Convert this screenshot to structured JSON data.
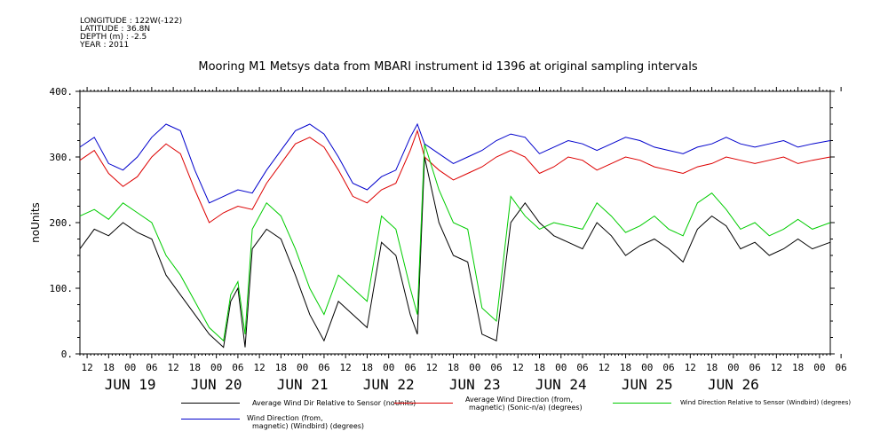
{
  "meta": {
    "longitude": "LONGITUDE : 122W(-122)",
    "latitude": "LATITUDE : 36.8N",
    "depth": "DEPTH (m) : -2.5",
    "year": "YEAR : 2011"
  },
  "chart_data": {
    "type": "line",
    "title": "Mooring M1 Metsys data from MBARI instrument id 1396 at original sampling intervals",
    "ylabel": "noUnits",
    "ylim": [
      0,
      400
    ],
    "yticks": [
      0,
      100,
      200,
      300,
      400
    ],
    "ytick_labels": [
      "0.",
      "100.",
      "200.",
      "300.",
      "400."
    ],
    "xlim_hours": [
      -14,
      195
    ],
    "x_unit_note": "hours from 2011-06-19 00:00",
    "hour_ticks": [
      "12",
      "18",
      "00",
      "06",
      "12",
      "18",
      "00",
      "06",
      "12",
      "18",
      "00",
      "06",
      "12",
      "18",
      "00",
      "06",
      "12",
      "18",
      "00",
      "06",
      "12",
      "18",
      "00",
      "06",
      "12",
      "18",
      "00",
      "06",
      "12",
      "18",
      "00",
      "06",
      "12",
      "18",
      "00",
      "06"
    ],
    "day_labels": [
      "JUN 19",
      "JUN 20",
      "JUN 21",
      "JUN 22",
      "JUN 23",
      "JUN 24",
      "JUN 25",
      "JUN 26"
    ],
    "series": [
      {
        "name": "Average Wind Dir Relative to Sensor (noUnits)",
        "color": "#000000",
        "points": [
          [
            -14,
            160
          ],
          [
            -10,
            190
          ],
          [
            -6,
            180
          ],
          [
            -2,
            200
          ],
          [
            2,
            185
          ],
          [
            6,
            175
          ],
          [
            10,
            120
          ],
          [
            14,
            90
          ],
          [
            18,
            60
          ],
          [
            22,
            30
          ],
          [
            26,
            10
          ],
          [
            28,
            80
          ],
          [
            30,
            100
          ],
          [
            32,
            10
          ],
          [
            34,
            160
          ],
          [
            38,
            190
          ],
          [
            42,
            175
          ],
          [
            46,
            120
          ],
          [
            50,
            60
          ],
          [
            54,
            20
          ],
          [
            58,
            80
          ],
          [
            62,
            60
          ],
          [
            66,
            40
          ],
          [
            70,
            170
          ],
          [
            74,
            150
          ],
          [
            78,
            60
          ],
          [
            80,
            30
          ],
          [
            82,
            300
          ],
          [
            86,
            200
          ],
          [
            90,
            150
          ],
          [
            94,
            140
          ],
          [
            98,
            30
          ],
          [
            102,
            20
          ],
          [
            106,
            200
          ],
          [
            110,
            230
          ],
          [
            114,
            200
          ],
          [
            118,
            180
          ],
          [
            122,
            170
          ],
          [
            126,
            160
          ],
          [
            130,
            200
          ],
          [
            134,
            180
          ],
          [
            138,
            150
          ],
          [
            142,
            165
          ],
          [
            146,
            175
          ],
          [
            150,
            160
          ],
          [
            154,
            140
          ],
          [
            158,
            190
          ],
          [
            162,
            210
          ],
          [
            166,
            195
          ],
          [
            170,
            160
          ],
          [
            174,
            170
          ],
          [
            178,
            150
          ],
          [
            182,
            160
          ],
          [
            186,
            175
          ],
          [
            190,
            160
          ],
          [
            195,
            170
          ]
        ]
      },
      {
        "name": "Average Wind Direction (from, magnetic) (Sonic-n/a) (degrees)",
        "color": "#dd0000",
        "points": [
          [
            -14,
            295
          ],
          [
            -10,
            310
          ],
          [
            -6,
            275
          ],
          [
            -2,
            255
          ],
          [
            2,
            270
          ],
          [
            6,
            300
          ],
          [
            10,
            320
          ],
          [
            14,
            305
          ],
          [
            18,
            250
          ],
          [
            22,
            200
          ],
          [
            26,
            215
          ],
          [
            30,
            225
          ],
          [
            34,
            220
          ],
          [
            38,
            260
          ],
          [
            42,
            290
          ],
          [
            46,
            320
          ],
          [
            50,
            330
          ],
          [
            54,
            315
          ],
          [
            58,
            280
          ],
          [
            62,
            240
          ],
          [
            66,
            230
          ],
          [
            70,
            250
          ],
          [
            74,
            260
          ],
          [
            78,
            310
          ],
          [
            80,
            340
          ],
          [
            82,
            300
          ],
          [
            86,
            280
          ],
          [
            90,
            265
          ],
          [
            94,
            275
          ],
          [
            98,
            285
          ],
          [
            102,
            300
          ],
          [
            106,
            310
          ],
          [
            110,
            300
          ],
          [
            114,
            275
          ],
          [
            118,
            285
          ],
          [
            122,
            300
          ],
          [
            126,
            295
          ],
          [
            130,
            280
          ],
          [
            134,
            290
          ],
          [
            138,
            300
          ],
          [
            142,
            295
          ],
          [
            146,
            285
          ],
          [
            150,
            280
          ],
          [
            154,
            275
          ],
          [
            158,
            285
          ],
          [
            162,
            290
          ],
          [
            166,
            300
          ],
          [
            170,
            295
          ],
          [
            174,
            290
          ],
          [
            178,
            295
          ],
          [
            182,
            300
          ],
          [
            186,
            290
          ],
          [
            190,
            295
          ],
          [
            195,
            300
          ]
        ]
      },
      {
        "name": "Wind Direction Relative to Sensor (Windbird) (degrees)",
        "color": "#00cc00",
        "points": [
          [
            -14,
            210
          ],
          [
            -10,
            220
          ],
          [
            -6,
            205
          ],
          [
            -2,
            230
          ],
          [
            2,
            215
          ],
          [
            6,
            200
          ],
          [
            10,
            150
          ],
          [
            14,
            120
          ],
          [
            18,
            80
          ],
          [
            22,
            40
          ],
          [
            26,
            20
          ],
          [
            28,
            90
          ],
          [
            30,
            110
          ],
          [
            32,
            30
          ],
          [
            34,
            190
          ],
          [
            38,
            230
          ],
          [
            42,
            210
          ],
          [
            46,
            160
          ],
          [
            50,
            100
          ],
          [
            54,
            60
          ],
          [
            58,
            120
          ],
          [
            62,
            100
          ],
          [
            66,
            80
          ],
          [
            70,
            210
          ],
          [
            74,
            190
          ],
          [
            78,
            100
          ],
          [
            80,
            60
          ],
          [
            82,
            320
          ],
          [
            86,
            250
          ],
          [
            90,
            200
          ],
          [
            94,
            190
          ],
          [
            98,
            70
          ],
          [
            102,
            50
          ],
          [
            106,
            240
          ],
          [
            110,
            210
          ],
          [
            114,
            190
          ],
          [
            118,
            200
          ],
          [
            122,
            195
          ],
          [
            126,
            190
          ],
          [
            130,
            230
          ],
          [
            134,
            210
          ],
          [
            138,
            185
          ],
          [
            142,
            195
          ],
          [
            146,
            210
          ],
          [
            150,
            190
          ],
          [
            154,
            180
          ],
          [
            158,
            230
          ],
          [
            162,
            245
          ],
          [
            166,
            220
          ],
          [
            170,
            190
          ],
          [
            174,
            200
          ],
          [
            178,
            180
          ],
          [
            182,
            190
          ],
          [
            186,
            205
          ],
          [
            190,
            190
          ],
          [
            195,
            200
          ]
        ]
      },
      {
        "name": "Wind Direction (from, magnetic) (Windbird) (degrees)",
        "color": "#0000cc",
        "points": [
          [
            -14,
            315
          ],
          [
            -10,
            330
          ],
          [
            -6,
            290
          ],
          [
            -2,
            280
          ],
          [
            2,
            300
          ],
          [
            6,
            330
          ],
          [
            10,
            350
          ],
          [
            14,
            340
          ],
          [
            18,
            280
          ],
          [
            22,
            230
          ],
          [
            26,
            240
          ],
          [
            30,
            250
          ],
          [
            34,
            245
          ],
          [
            38,
            280
          ],
          [
            42,
            310
          ],
          [
            46,
            340
          ],
          [
            50,
            350
          ],
          [
            54,
            335
          ],
          [
            58,
            300
          ],
          [
            62,
            260
          ],
          [
            66,
            250
          ],
          [
            70,
            270
          ],
          [
            74,
            280
          ],
          [
            78,
            330
          ],
          [
            80,
            350
          ],
          [
            82,
            320
          ],
          [
            86,
            305
          ],
          [
            90,
            290
          ],
          [
            94,
            300
          ],
          [
            98,
            310
          ],
          [
            102,
            325
          ],
          [
            106,
            335
          ],
          [
            110,
            330
          ],
          [
            114,
            305
          ],
          [
            118,
            315
          ],
          [
            122,
            325
          ],
          [
            126,
            320
          ],
          [
            130,
            310
          ],
          [
            134,
            320
          ],
          [
            138,
            330
          ],
          [
            142,
            325
          ],
          [
            146,
            315
          ],
          [
            150,
            310
          ],
          [
            154,
            305
          ],
          [
            158,
            315
          ],
          [
            162,
            320
          ],
          [
            166,
            330
          ],
          [
            170,
            320
          ],
          [
            174,
            315
          ],
          [
            178,
            320
          ],
          [
            182,
            325
          ],
          [
            186,
            315
          ],
          [
            190,
            320
          ],
          [
            195,
            325
          ]
        ]
      }
    ],
    "legend": [
      {
        "text": "Average Wind Dir Relative to Sensor (noUnits)",
        "color": "#000000"
      },
      {
        "text": "Average Wind Direction (from, magnetic) (Sonic-n/a) (degrees)",
        "color": "#dd0000"
      },
      {
        "text": "Wind Direction Relative to Sensor (Windbird) (degrees)",
        "color": "#00cc00"
      },
      {
        "text": "Wind Direction (from, magnetic) (Windbird) (degrees)",
        "color": "#0000cc"
      }
    ]
  },
  "legend_text": {
    "black_line1": "Average Wind Dir Relative to Sensor (noUnits)",
    "red_line1": "Average Wind Direction (from,",
    "red_line2": "magnetic) (Sonic-n/a) (degrees)",
    "green_line1": "Wind Direction Relative to Sensor (Windbird) (degrees)",
    "blue_line1": "Wind Direction (from,",
    "blue_line2": "magnetic) (Windbird) (degrees)"
  }
}
